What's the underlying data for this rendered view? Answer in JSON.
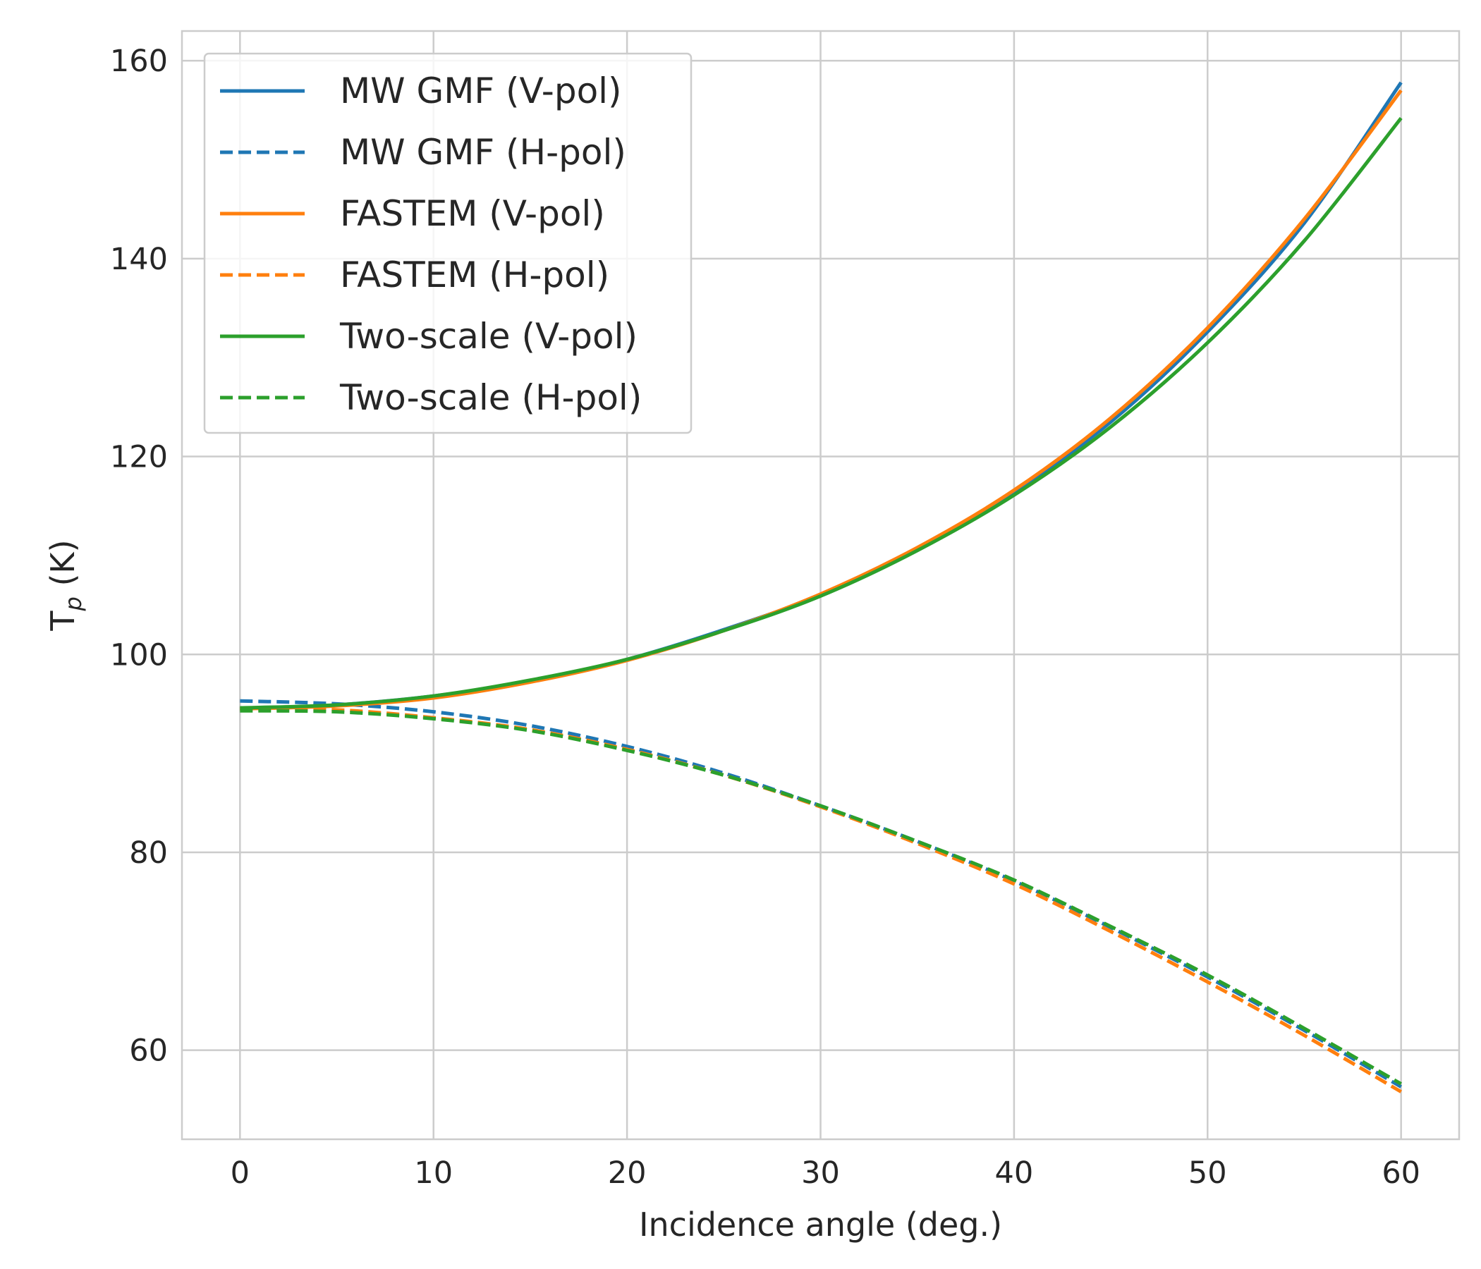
{
  "chart_data": {
    "type": "line",
    "title": "",
    "xlabel": "Incidence angle (deg.)",
    "ylabel_main": "T",
    "ylabel_sub": "p",
    "ylabel_suffix": " (K)",
    "xlim": [
      -3,
      63
    ],
    "ylim": [
      51,
      163
    ],
    "xticks": [
      0,
      10,
      20,
      30,
      40,
      50,
      60
    ],
    "yticks": [
      60,
      80,
      100,
      120,
      140,
      160
    ],
    "grid": true,
    "legend_position": "upper-left",
    "x": [
      0,
      5,
      10,
      15,
      20,
      25,
      30,
      35,
      40,
      45,
      50,
      55,
      60
    ],
    "series": [
      {
        "name": "MW GMF (V-pol)",
        "color": "#1f77b4",
        "dash": "solid",
        "values": [
          94.5,
          94.9,
          95.8,
          97.3,
          99.5,
          102.5,
          106.0,
          110.6,
          116.4,
          123.5,
          132.6,
          143.6,
          157.8
        ]
      },
      {
        "name": "MW GMF (H-pol)",
        "color": "#1f77b4",
        "dash": "dashed",
        "values": [
          95.3,
          95.0,
          94.2,
          92.8,
          90.7,
          88.0,
          84.7,
          81.1,
          77.1,
          72.4,
          67.4,
          62.0,
          56.3
        ]
      },
      {
        "name": "FASTEM (V-pol)",
        "color": "#ff7f0e",
        "dash": "solid",
        "values": [
          94.5,
          94.8,
          95.6,
          97.2,
          99.4,
          102.4,
          106.1,
          110.8,
          116.6,
          123.9,
          133.0,
          144.0,
          157.0
        ]
      },
      {
        "name": "FASTEM (H-pol)",
        "color": "#ff7f0e",
        "dash": "dashed",
        "values": [
          94.5,
          94.4,
          93.6,
          92.4,
          90.4,
          87.8,
          84.6,
          80.9,
          76.8,
          72.0,
          66.9,
          61.5,
          55.8
        ]
      },
      {
        "name": "Two-scale (V-pol)",
        "color": "#2ca02c",
        "dash": "solid",
        "values": [
          94.6,
          94.9,
          95.8,
          97.4,
          99.5,
          102.4,
          105.9,
          110.5,
          116.1,
          123.0,
          131.5,
          141.8,
          154.2
        ]
      },
      {
        "name": "Two-scale (H-pol)",
        "color": "#2ca02c",
        "dash": "dashed",
        "values": [
          94.3,
          94.2,
          93.5,
          92.3,
          90.3,
          87.8,
          84.7,
          81.1,
          77.2,
          72.5,
          67.6,
          62.2,
          56.6
        ]
      }
    ]
  }
}
